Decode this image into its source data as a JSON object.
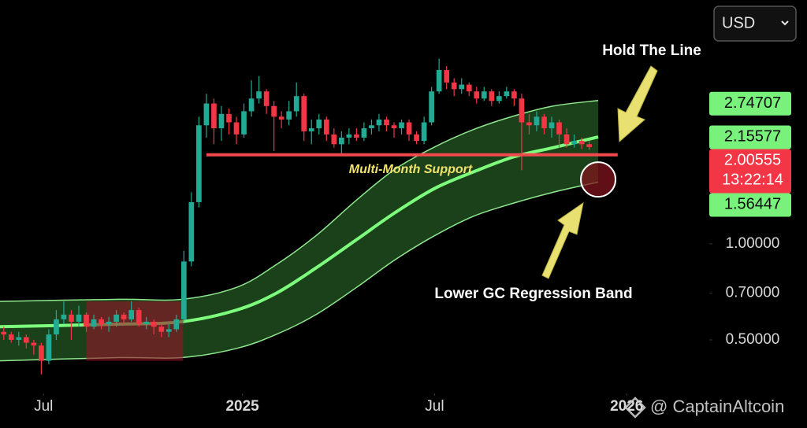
{
  "chart_data": {
    "type": "candlestick",
    "currency": "USD",
    "watermark": "@ CaptainAltcoin",
    "log_scale": true,
    "xlim": [
      -0.5,
      94
    ],
    "ylim": [
      0.34,
      5.8
    ],
    "yticks": [
      {
        "value": 0.5,
        "label": "0.50000"
      },
      {
        "value": 0.7,
        "label": "0.70000"
      },
      {
        "value": 1,
        "label": "1.00000"
      }
    ],
    "xticks": [
      {
        "value": 5.3,
        "label": "Jul"
      },
      {
        "value": 31.8,
        "label": "2025"
      },
      {
        "value": 57.4,
        "label": "Jul"
      },
      {
        "value": 83,
        "label": "2026"
      }
    ],
    "up_color": "#22ab94",
    "down_color": "#f23645",
    "candles": {
      "open": [
        0.53,
        0.52,
        0.5,
        0.51,
        0.49,
        0.48,
        0.43,
        0.52,
        0.58,
        0.6,
        0.57,
        0.6,
        0.55,
        0.58,
        0.56,
        0.57,
        0.6,
        0.58,
        0.62,
        0.56,
        0.57,
        0.55,
        0.53,
        0.54,
        0.58,
        0.88,
        1.35,
        2.35,
        2.75,
        2.3,
        2.55,
        2.4,
        2.2,
        2.6,
        2.85,
        3.0,
        2.7,
        2.5,
        2.45,
        2.6,
        2.9,
        2.25,
        2.3,
        2.45,
        2.2,
        2.05,
        2.15,
        2.2,
        2.15,
        2.3,
        2.35,
        2.45,
        2.35,
        2.3,
        2.4,
        2.2,
        2.1,
        2.4,
        3.0,
        3.5,
        3.2,
        3.05,
        3.15,
        3.0,
        2.85,
        3.0,
        2.8,
        2.9,
        3.0,
        2.85,
        2.4,
        2.35,
        2.5,
        2.3,
        2.4,
        2.2,
        2.05,
        2.1,
        2.05
      ],
      "high": [
        0.55,
        0.53,
        0.53,
        0.52,
        0.5,
        0.49,
        0.54,
        0.62,
        0.66,
        0.62,
        0.64,
        0.61,
        0.6,
        0.59,
        0.59,
        0.62,
        0.61,
        0.66,
        0.63,
        0.59,
        0.58,
        0.56,
        0.56,
        0.6,
        0.95,
        1.45,
        2.5,
        2.95,
        2.85,
        2.7,
        2.65,
        2.5,
        2.75,
        3.25,
        3.35,
        3.05,
        2.8,
        2.6,
        2.8,
        3.2,
        2.95,
        2.45,
        2.55,
        2.5,
        2.3,
        2.25,
        2.3,
        2.3,
        2.4,
        2.45,
        2.55,
        2.5,
        2.4,
        2.45,
        2.45,
        2.25,
        2.5,
        3.1,
        3.8,
        3.6,
        3.3,
        3.3,
        3.2,
        3.1,
        3.1,
        3.05,
        3.0,
        3.1,
        3.05,
        2.95,
        2.55,
        2.6,
        2.55,
        2.5,
        2.45,
        2.3,
        2.2,
        2.15,
        2.1
      ],
      "low": [
        0.5,
        0.49,
        0.48,
        0.47,
        0.45,
        0.39,
        0.42,
        0.5,
        0.56,
        0.5,
        0.55,
        0.53,
        0.54,
        0.54,
        0.53,
        0.55,
        0.56,
        0.57,
        0.55,
        0.54,
        0.52,
        0.51,
        0.51,
        0.53,
        0.57,
        0.85,
        1.3,
        2.15,
        2.05,
        2.1,
        2.2,
        2.05,
        2.15,
        2.5,
        2.75,
        2.55,
        1.95,
        2.3,
        2.35,
        2.5,
        2.1,
        2.05,
        2.2,
        2.1,
        2.0,
        1.9,
        2.05,
        2.1,
        2.1,
        2.2,
        2.25,
        2.25,
        2.15,
        2.2,
        2.1,
        2.05,
        2.05,
        2.35,
        2.95,
        3.05,
        2.9,
        2.95,
        2.9,
        2.75,
        2.8,
        2.7,
        2.75,
        2.85,
        2.7,
        1.7,
        2.2,
        2.25,
        2.2,
        2.15,
        2.0,
        2.0,
        2.0,
        1.98,
        1.97
      ],
      "close": [
        0.52,
        0.5,
        0.51,
        0.49,
        0.48,
        0.43,
        0.52,
        0.58,
        0.6,
        0.57,
        0.6,
        0.55,
        0.58,
        0.56,
        0.57,
        0.6,
        0.58,
        0.62,
        0.56,
        0.57,
        0.55,
        0.53,
        0.54,
        0.58,
        0.88,
        1.35,
        2.35,
        2.75,
        2.3,
        2.55,
        2.4,
        2.2,
        2.6,
        2.85,
        3.0,
        2.7,
        2.5,
        2.45,
        2.6,
        2.9,
        2.25,
        2.3,
        2.45,
        2.2,
        2.05,
        2.15,
        2.2,
        2.15,
        2.3,
        2.35,
        2.45,
        2.35,
        2.3,
        2.4,
        2.2,
        2.1,
        2.4,
        3.0,
        3.5,
        3.2,
        3.05,
        3.15,
        3.0,
        2.85,
        3.0,
        2.8,
        2.9,
        3.0,
        2.85,
        2.4,
        2.35,
        2.5,
        2.3,
        2.4,
        2.2,
        2.05,
        2.1,
        2.05,
        2.01
      ]
    },
    "regression_band": {
      "x": [
        -0.5,
        15.3,
        23.7,
        31,
        36.3,
        41.6,
        47,
        52.1,
        57.4,
        62.6,
        67.9,
        73.2,
        79.2
      ],
      "upper": [
        0.66,
        0.67,
        0.67,
        0.73,
        0.86,
        1.06,
        1.37,
        1.71,
        2.01,
        2.28,
        2.51,
        2.7,
        2.81
      ],
      "middle": [
        0.55,
        0.56,
        0.57,
        0.62,
        0.7,
        0.84,
        1.03,
        1.25,
        1.49,
        1.68,
        1.87,
        2.0,
        2.16
      ],
      "lower": [
        0.43,
        0.44,
        0.44,
        0.47,
        0.52,
        0.6,
        0.73,
        0.89,
        1.06,
        1.22,
        1.34,
        1.45,
        1.56
      ]
    },
    "support": {
      "value": 1.9,
      "x": [
        27,
        81.8
      ],
      "label": "Multi-Month Support"
    },
    "highlight_box": {
      "x": [
        11,
        23.9
      ],
      "y": [
        0.43,
        0.66
      ]
    },
    "highlight_circle": {
      "x": 79.2,
      "y": 1.59
    },
    "annotations": [
      "Hold The Line",
      "Lower GC Regression Band"
    ],
    "price_labels": [
      2.74707,
      2.15577,
      2.00555,
      1.56447
    ],
    "price_label_colors": [
      "#79f27c",
      "#79f27c",
      "#f23645",
      "#79f27c"
    ],
    "countdown": "13:22:14"
  }
}
